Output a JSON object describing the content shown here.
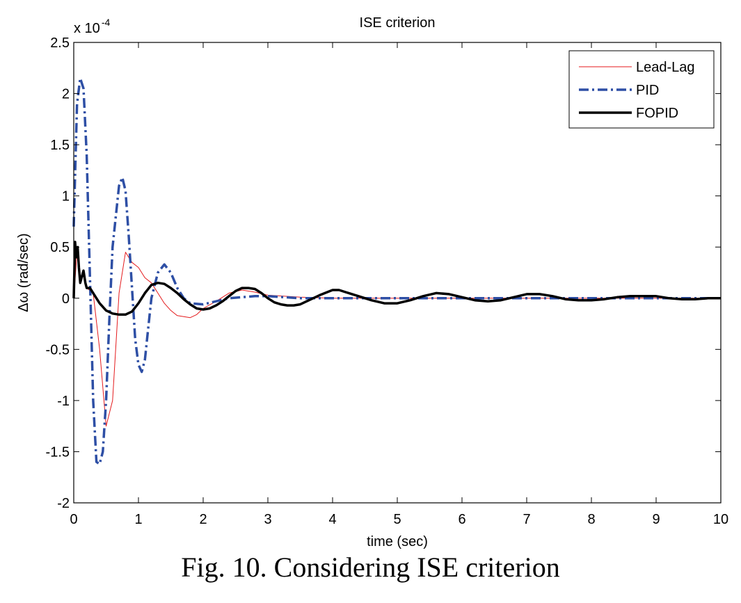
{
  "caption": "Fig. 10. Considering ISE criterion",
  "chart_data": {
    "type": "line",
    "title": "ISE criterion",
    "xlabel": "time (sec)",
    "ylabel": "Δω (rad/sec)",
    "exponent_label": "x 10",
    "exponent_power": "-4",
    "xlim": [
      0,
      10
    ],
    "ylim": [
      -2,
      2.5
    ],
    "x_ticks": [
      0,
      1,
      2,
      3,
      4,
      5,
      6,
      7,
      8,
      9,
      10
    ],
    "x_tick_labels": [
      "0",
      "1",
      "2",
      "3",
      "4",
      "5",
      "6",
      "7",
      "8",
      "9",
      "10"
    ],
    "y_ticks": [
      -2,
      -1.5,
      -1,
      -0.5,
      0,
      0.5,
      1,
      1.5,
      2,
      2.5
    ],
    "y_tick_labels": [
      "-2",
      "-1.5",
      "-1",
      "-0.5",
      "0",
      "0.5",
      "1",
      "1.5",
      "2",
      "2.5"
    ],
    "grid": false,
    "legend_position": "top-right",
    "series": [
      {
        "name": "Lead-Lag",
        "color": "#e41a1c",
        "style": "solid-thin",
        "x": [
          0,
          0.05,
          0.1,
          0.15,
          0.2,
          0.3,
          0.4,
          0.5,
          0.6,
          0.7,
          0.8,
          0.9,
          1.0,
          1.1,
          1.2,
          1.3,
          1.4,
          1.5,
          1.6,
          1.7,
          1.8,
          1.9,
          2.0,
          2.2,
          2.4,
          2.6,
          2.8,
          3.0,
          3.5,
          4.0,
          5.0,
          6.0,
          7.0,
          8.0,
          9.0,
          10.0
        ],
        "y": [
          0,
          0.45,
          0.2,
          0.25,
          0.1,
          0.05,
          -0.5,
          -1.25,
          -1.0,
          0.05,
          0.45,
          0.35,
          0.3,
          0.2,
          0.15,
          0.05,
          -0.05,
          -0.12,
          -0.17,
          -0.18,
          -0.19,
          -0.16,
          -0.1,
          -0.03,
          0.05,
          0.08,
          0.06,
          0.03,
          0.01,
          0.0,
          0.0,
          0.0,
          0.0,
          0.0,
          0.0,
          0.0
        ]
      },
      {
        "name": "PID",
        "color": "#2e4fa5",
        "style": "dash-dot",
        "x": [
          0,
          0.02,
          0.05,
          0.1,
          0.15,
          0.2,
          0.25,
          0.3,
          0.35,
          0.4,
          0.45,
          0.5,
          0.55,
          0.6,
          0.7,
          0.75,
          0.8,
          0.85,
          0.9,
          0.95,
          1.0,
          1.05,
          1.1,
          1.15,
          1.2,
          1.3,
          1.4,
          1.5,
          1.6,
          1.7,
          1.8,
          2.0,
          2.2,
          2.4,
          2.6,
          2.8,
          3.0,
          3.5,
          4.0,
          5.0,
          6.0,
          7.0,
          8.0,
          9.0,
          10.0
        ],
        "y": [
          0.7,
          1.2,
          1.9,
          2.15,
          2.05,
          1.4,
          0.2,
          -1.0,
          -1.6,
          -1.62,
          -1.5,
          -1.0,
          -0.2,
          0.5,
          1.1,
          1.18,
          1.05,
          0.6,
          0.1,
          -0.4,
          -0.65,
          -0.72,
          -0.6,
          -0.3,
          0.0,
          0.25,
          0.33,
          0.25,
          0.1,
          0.0,
          -0.05,
          -0.06,
          -0.03,
          0.0,
          0.01,
          0.02,
          0.02,
          0.0,
          0.0,
          0.0,
          0.0,
          0.0,
          0.0,
          0.0,
          0.0
        ]
      },
      {
        "name": "FOPID",
        "color": "#000000",
        "style": "solid-thick",
        "x": [
          0,
          0.02,
          0.04,
          0.06,
          0.08,
          0.1,
          0.12,
          0.15,
          0.18,
          0.2,
          0.25,
          0.3,
          0.4,
          0.5,
          0.6,
          0.7,
          0.8,
          0.9,
          1.0,
          1.1,
          1.2,
          1.3,
          1.4,
          1.5,
          1.6,
          1.7,
          1.8,
          1.9,
          2.0,
          2.1,
          2.2,
          2.3,
          2.4,
          2.5,
          2.6,
          2.7,
          2.8,
          2.9,
          3.0,
          3.1,
          3.2,
          3.3,
          3.4,
          3.5,
          3.6,
          3.8,
          4.0,
          4.1,
          4.2,
          4.4,
          4.6,
          4.8,
          5.0,
          5.2,
          5.4,
          5.6,
          5.8,
          6.0,
          6.2,
          6.4,
          6.6,
          6.8,
          7.0,
          7.2,
          7.4,
          7.6,
          7.8,
          8.0,
          8.2,
          8.4,
          8.6,
          8.8,
          9.0,
          9.2,
          9.4,
          9.6,
          9.8,
          10.0
        ],
        "y": [
          0,
          0.55,
          0.4,
          0.5,
          0.3,
          0.15,
          0.2,
          0.27,
          0.15,
          0.1,
          0.1,
          0.05,
          -0.05,
          -0.12,
          -0.15,
          -0.16,
          -0.16,
          -0.13,
          -0.05,
          0.05,
          0.13,
          0.15,
          0.14,
          0.1,
          0.05,
          -0.01,
          -0.06,
          -0.1,
          -0.11,
          -0.1,
          -0.07,
          -0.03,
          0.02,
          0.07,
          0.1,
          0.1,
          0.09,
          0.05,
          0.0,
          -0.04,
          -0.06,
          -0.07,
          -0.07,
          -0.06,
          -0.03,
          0.03,
          0.08,
          0.08,
          0.06,
          0.02,
          -0.02,
          -0.05,
          -0.05,
          -0.02,
          0.02,
          0.05,
          0.04,
          0.01,
          -0.02,
          -0.03,
          -0.02,
          0.01,
          0.04,
          0.04,
          0.02,
          -0.01,
          -0.02,
          -0.02,
          -0.01,
          0.01,
          0.02,
          0.02,
          0.02,
          0.0,
          -0.01,
          -0.01,
          0.0,
          0.0
        ]
      }
    ]
  }
}
